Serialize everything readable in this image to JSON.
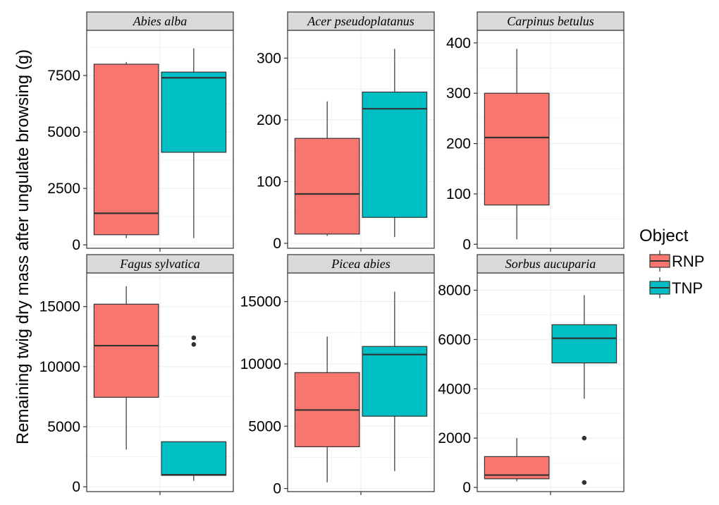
{
  "chart_data": {
    "type": "boxplot",
    "ylabel": "Remaining twig dry mass after ungulate browsing (g)",
    "xlabel": "",
    "legend": {
      "title": "Object",
      "placement": "right",
      "items": [
        {
          "name": "RNP",
          "color": "#F8766D"
        },
        {
          "name": "TNP",
          "color": "#00BFC4"
        }
      ]
    },
    "grid": true,
    "facets": [
      {
        "title": "Abies alba",
        "ylim": [
          -150,
          9500
        ],
        "yticks": [
          0,
          2500,
          5000,
          7500
        ],
        "tick_labels": [
          "0",
          "2500",
          "5000",
          "7500"
        ],
        "boxes": [
          {
            "group": "RNP",
            "whisker_low": 300,
            "q1": 450,
            "median": 1400,
            "q3": 8000,
            "whisker_high": 8100,
            "outliers": []
          },
          {
            "group": "TNP",
            "whisker_low": 300,
            "q1": 4100,
            "median": 7400,
            "q3": 7650,
            "whisker_high": 8700,
            "outliers": []
          }
        ]
      },
      {
        "title": "Acer pseudoplatanus",
        "ylim": [
          -8,
          345
        ],
        "yticks": [
          0,
          100,
          200,
          300
        ],
        "tick_labels": [
          "0",
          "100",
          "200",
          "300"
        ],
        "boxes": [
          {
            "group": "RNP",
            "whisker_low": 12,
            "q1": 15,
            "median": 80,
            "q3": 170,
            "whisker_high": 230,
            "outliers": []
          },
          {
            "group": "TNP",
            "whisker_low": 10,
            "q1": 42,
            "median": 218,
            "q3": 245,
            "whisker_high": 315,
            "outliers": []
          }
        ]
      },
      {
        "title": "Carpinus betulus",
        "ylim": [
          -8,
          425
        ],
        "yticks": [
          0,
          100,
          200,
          300,
          400
        ],
        "tick_labels": [
          "0",
          "100",
          "200",
          "300",
          "400"
        ],
        "boxes": [
          {
            "group": "RNP",
            "whisker_low": 10,
            "q1": 78,
            "median": 212,
            "q3": 300,
            "whisker_high": 388,
            "outliers": []
          }
        ]
      },
      {
        "title": "Fagus sylvatica",
        "ylim": [
          -400,
          17800
        ],
        "yticks": [
          0,
          5000,
          10000,
          15000
        ],
        "tick_labels": [
          "0",
          "5000",
          "10000",
          "15000"
        ],
        "boxes": [
          {
            "group": "RNP",
            "whisker_low": 3100,
            "q1": 7450,
            "median": 11750,
            "q3": 15200,
            "whisker_high": 16700,
            "outliers": []
          },
          {
            "group": "TNP",
            "whisker_low": 500,
            "q1": 950,
            "median": 1000,
            "q3": 3750,
            "whisker_high": 3750,
            "outliers": [
              11850,
              12400
            ]
          }
        ]
      },
      {
        "title": "Picea abies",
        "ylim": [
          -250,
          17300
        ],
        "yticks": [
          0,
          5000,
          10000,
          15000
        ],
        "tick_labels": [
          "0",
          "5000",
          "10000",
          "15000"
        ],
        "boxes": [
          {
            "group": "RNP",
            "whisker_low": 500,
            "q1": 3350,
            "median": 6300,
            "q3": 9300,
            "whisker_high": 12200,
            "outliers": []
          },
          {
            "group": "TNP",
            "whisker_low": 1400,
            "q1": 5800,
            "median": 10750,
            "q3": 11400,
            "whisker_high": 15800,
            "outliers": []
          }
        ]
      },
      {
        "title": "Sorbus aucuparia",
        "ylim": [
          -170,
          8700
        ],
        "yticks": [
          0,
          2000,
          4000,
          6000,
          8000
        ],
        "tick_labels": [
          "0",
          "2000",
          "4000",
          "6000",
          "8000"
        ],
        "boxes": [
          {
            "group": "RNP",
            "whisker_low": 250,
            "q1": 350,
            "median": 500,
            "q3": 1250,
            "whisker_high": 2000,
            "outliers": []
          },
          {
            "group": "TNP",
            "whisker_low": 3600,
            "q1": 5050,
            "median": 6050,
            "q3": 6600,
            "whisker_high": 7800,
            "outliers": [
              200,
              2000
            ]
          }
        ]
      }
    ]
  }
}
